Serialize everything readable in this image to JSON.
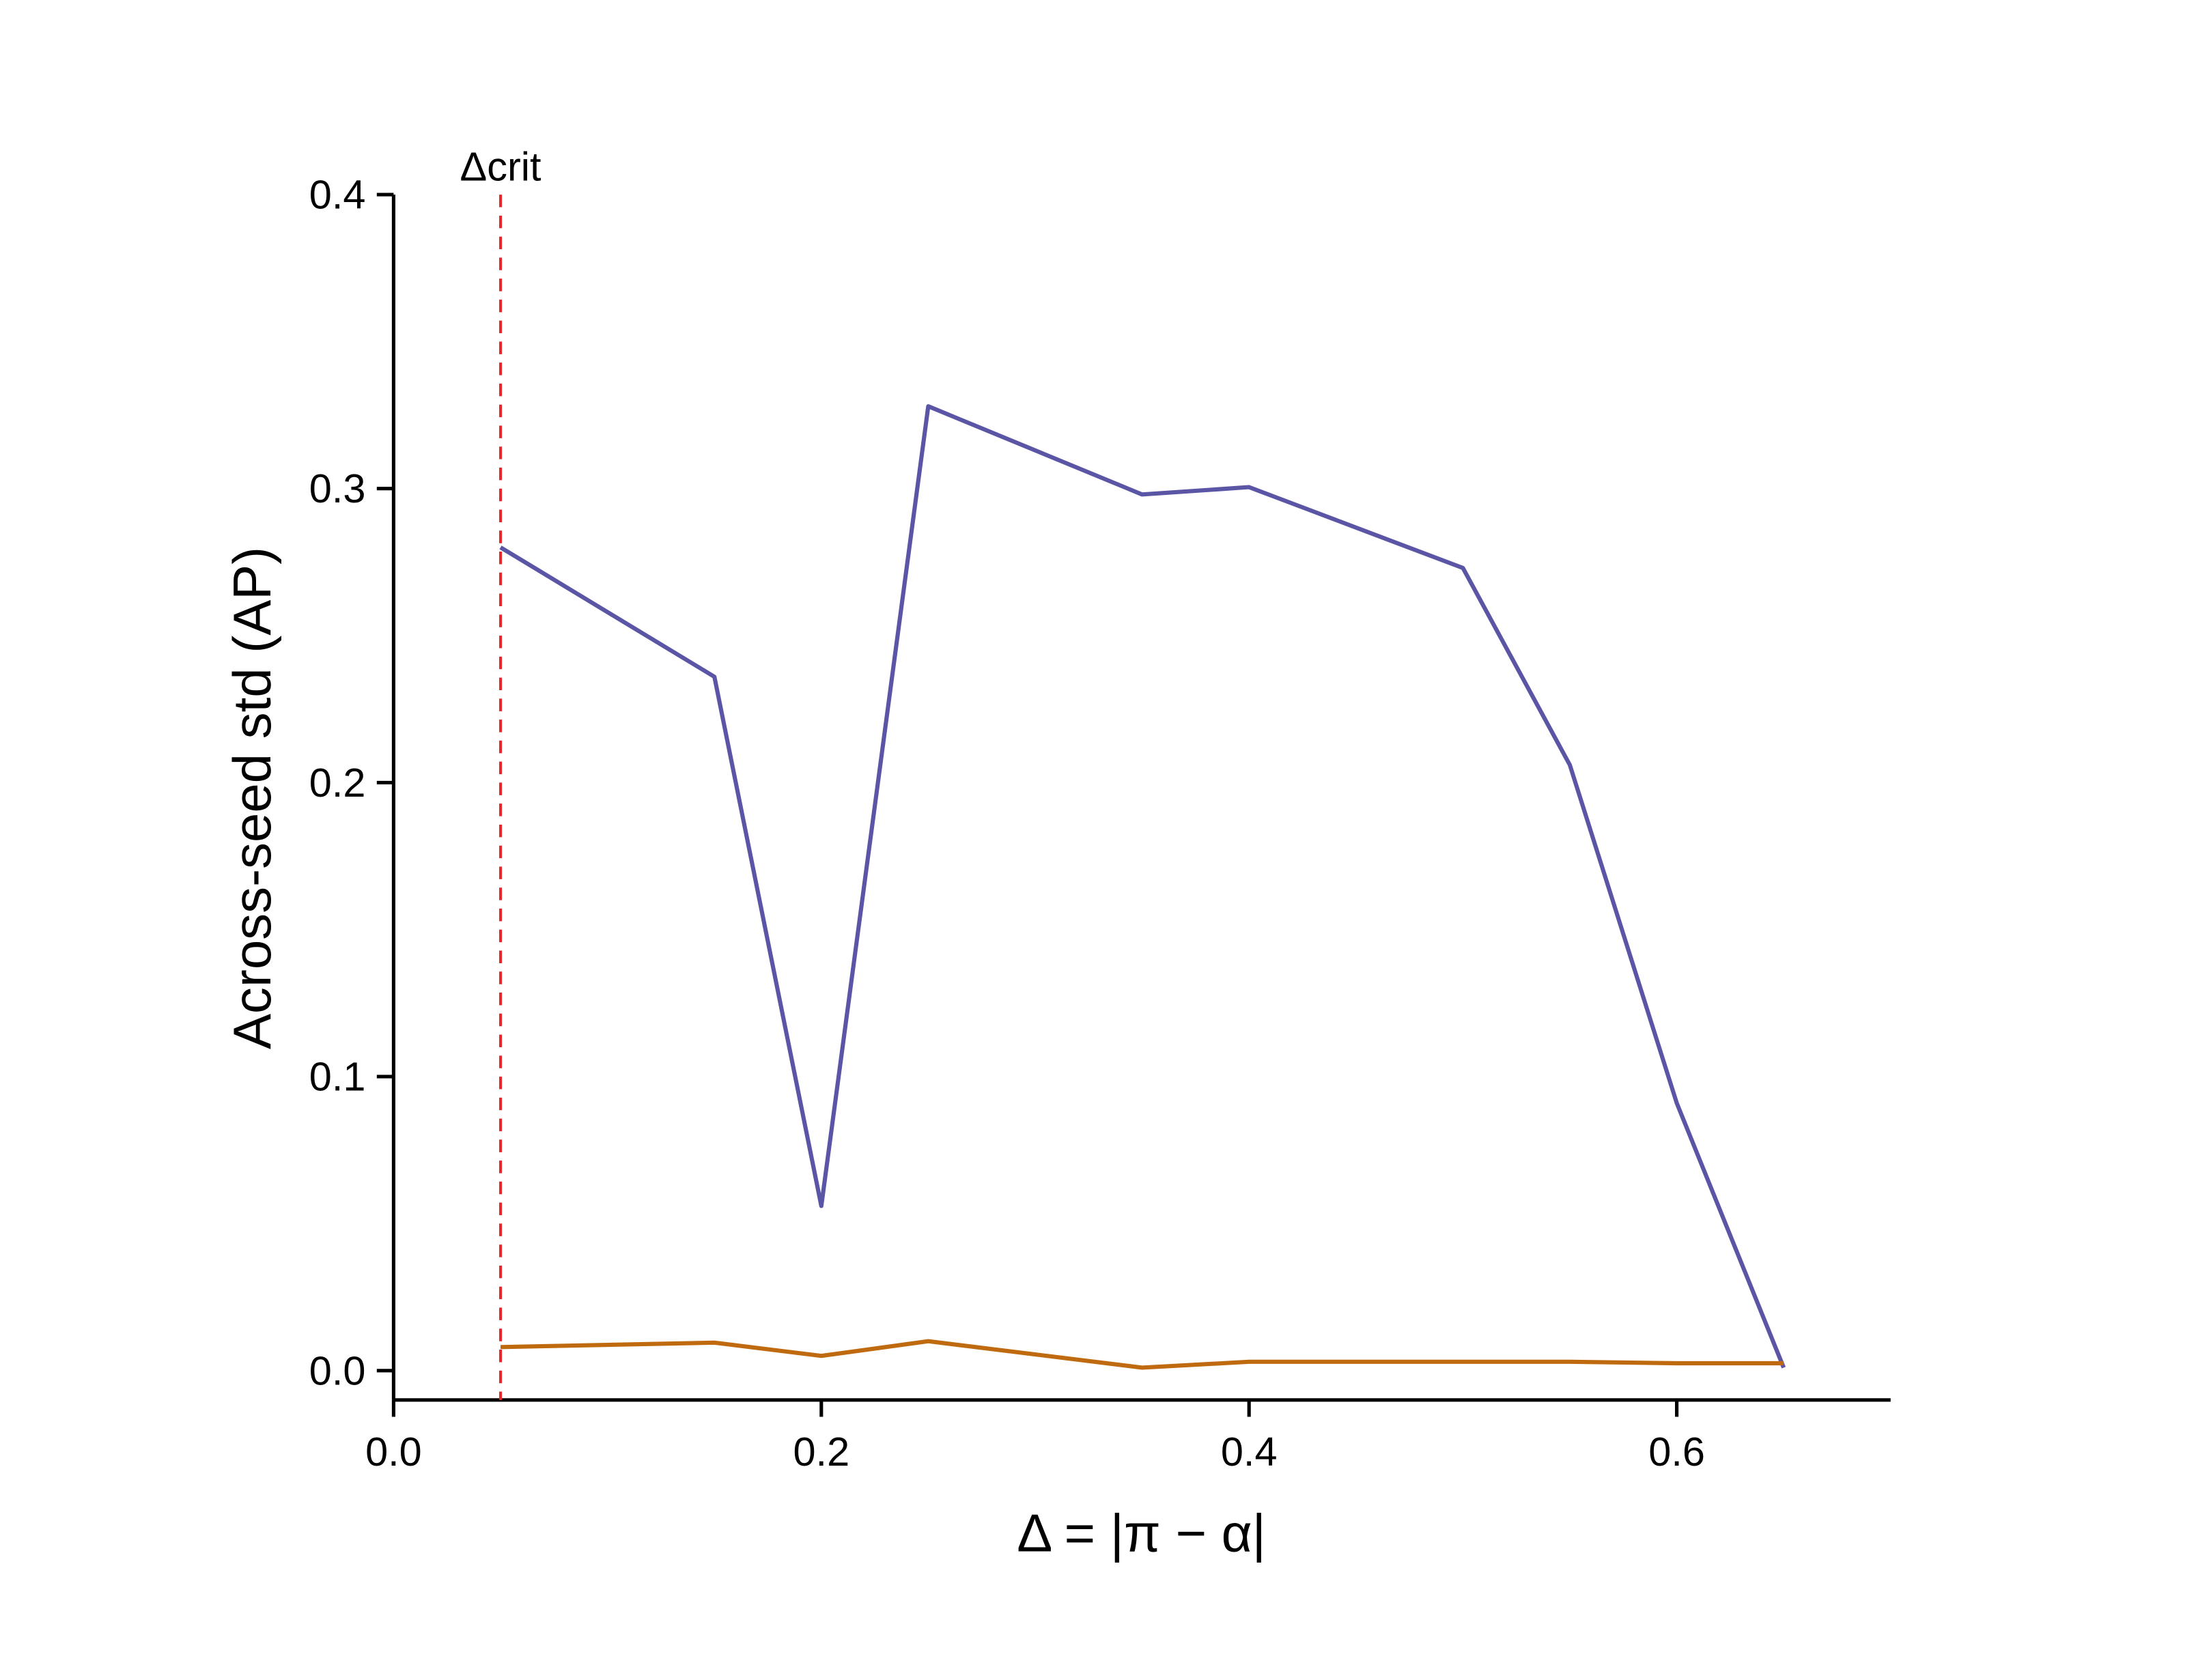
{
  "chart_data": {
    "type": "line",
    "xlabel": "Δ = |π − α|",
    "ylabel": "Across-seed std (AP)",
    "x": [
      0.05,
      0.15,
      0.2,
      0.25,
      0.35,
      0.4,
      0.5,
      0.55,
      0.6,
      0.65
    ],
    "series": [
      {
        "color": "#5b55a5",
        "values": [
          0.28,
          0.236,
          0.056,
          0.328,
          0.298,
          0.3005,
          0.273,
          0.206,
          0.091,
          0.001
        ]
      },
      {
        "color": "#c06a10",
        "values": [
          0.008,
          0.0095,
          0.005,
          0.01,
          0.001,
          0.003,
          0.003,
          0.003,
          0.0025,
          0.0025
        ]
      }
    ],
    "xlim": [
      0,
      0.7
    ],
    "ylim": [
      -0.01,
      0.4
    ],
    "xticks": [
      {
        "value": 0,
        "label": "0.0"
      },
      0.2,
      0.4,
      0.6
    ],
    "yticks": [
      {
        "value": 0,
        "label": "0.0"
      },
      0.1,
      0.2,
      0.3,
      0.4
    ],
    "vline": {
      "x": 0.05,
      "label": "Δcrit",
      "color": "#e8262a"
    },
    "grid": false
  }
}
